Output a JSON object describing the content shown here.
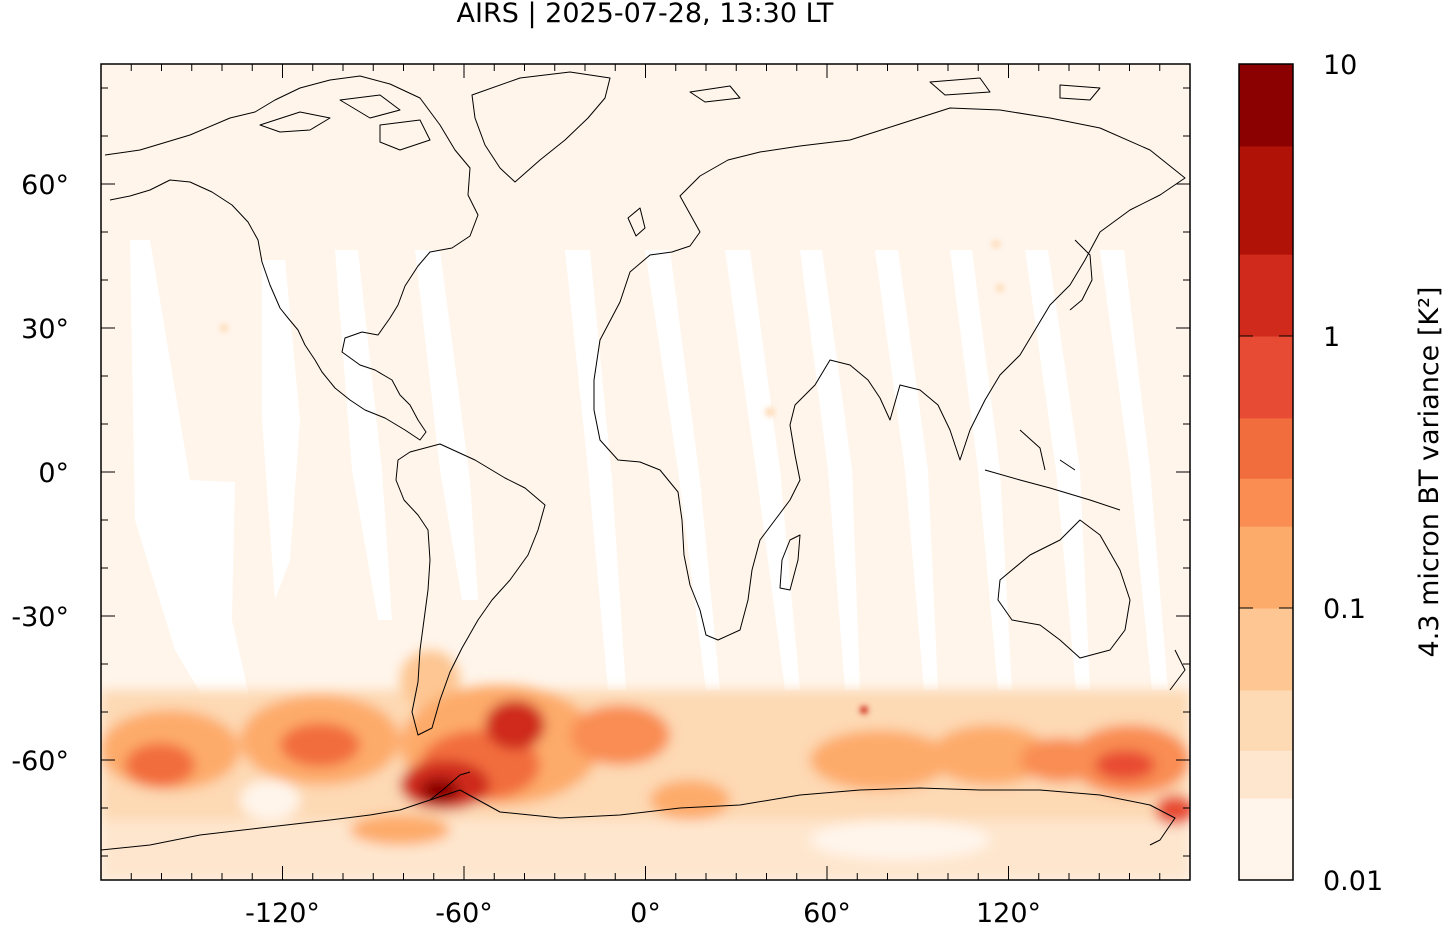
{
  "title": "AIRS | 2025-07-28, 13:30 LT",
  "map": {
    "projection": "equirectangular",
    "lon_range": [
      -180,
      180
    ],
    "lat_range": [
      -85,
      85
    ],
    "lon_ticks": [
      -120,
      -60,
      0,
      60,
      120
    ],
    "lon_tick_labels": [
      "-120°",
      "-60°",
      "0°",
      "60°",
      "120°"
    ],
    "lat_ticks": [
      60,
      30,
      0,
      -30,
      -60
    ],
    "lat_tick_labels": [
      "60°",
      "30°",
      "0°",
      "-30°",
      "-60°"
    ],
    "background_color": "#fff5eb",
    "coastline_color": "#000000"
  },
  "colorbar": {
    "label": "4.3 micron BT variance [K²]",
    "scale": "log",
    "range": [
      0.01,
      10
    ],
    "tick_values": [
      10,
      1,
      0.1,
      0.01
    ],
    "tick_labels": [
      "10",
      "1",
      "0.1",
      "0.01"
    ],
    "levels": [
      {
        "from": 0.01,
        "to": 0.02,
        "color": "#fff5eb"
      },
      {
        "from": 0.02,
        "to": 0.03,
        "color": "#fee6ce"
      },
      {
        "from": 0.03,
        "to": 0.05,
        "color": "#fdd9b4"
      },
      {
        "from": 0.05,
        "to": 0.1,
        "color": "#fdc692"
      },
      {
        "from": 0.1,
        "to": 0.2,
        "color": "#fdab6b"
      },
      {
        "from": 0.2,
        "to": 0.3,
        "color": "#f98d52"
      },
      {
        "from": 0.3,
        "to": 0.5,
        "color": "#f26d3e"
      },
      {
        "from": 0.5,
        "to": 1,
        "color": "#e84b33"
      },
      {
        "from": 1,
        "to": 2,
        "color": "#cf2a1c"
      },
      {
        "from": 2,
        "to": 5,
        "color": "#b11207"
      },
      {
        "from": 5,
        "to": 10,
        "color": "#8b0000"
      }
    ]
  }
}
